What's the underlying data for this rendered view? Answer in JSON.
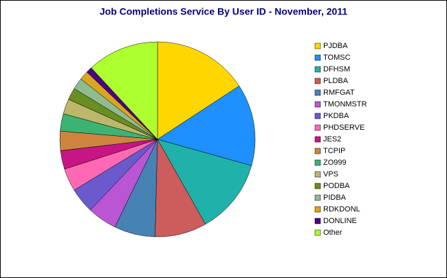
{
  "chart_data": {
    "type": "pie",
    "title": "Job Completions Service By User ID - November, 2011",
    "series": [
      {
        "name": "PJDBA",
        "color": "#FFD700",
        "values": [
          15.8
        ]
      },
      {
        "name": "TOMSC",
        "color": "#1E90FF",
        "values": [
          13.6
        ]
      },
      {
        "name": "DFHSM",
        "color": "#20B2AA",
        "values": [
          12.5
        ]
      },
      {
        "name": "PLDBA",
        "color": "#CD5C5C",
        "values": [
          8.6
        ]
      },
      {
        "name": "RMFGAT",
        "color": "#4682B4",
        "values": [
          6.8
        ]
      },
      {
        "name": "TMONMSTR",
        "color": "#BA55D3",
        "values": [
          4.9
        ]
      },
      {
        "name": "PKDBA",
        "color": "#6A5ACD",
        "values": [
          4.2
        ]
      },
      {
        "name": "PHDSERVE",
        "color": "#FF69B4",
        "values": [
          3.8
        ]
      },
      {
        "name": "JES2",
        "color": "#C71585",
        "values": [
          3.1
        ]
      },
      {
        "name": "TCPIP",
        "color": "#CD853F",
        "values": [
          3.2
        ]
      },
      {
        "name": "ZO999",
        "color": "#3CB371",
        "values": [
          2.9
        ]
      },
      {
        "name": "VPS",
        "color": "#BDB76B",
        "values": [
          2.5
        ]
      },
      {
        "name": "PODBA",
        "color": "#6B8E23",
        "values": [
          2.0
        ]
      },
      {
        "name": "PIDBA",
        "color": "#8FBC8F",
        "values": [
          1.9
        ]
      },
      {
        "name": "RDKDONL",
        "color": "#DAA520",
        "values": [
          1.5
        ]
      },
      {
        "name": "DONLINE",
        "color": "#4B0082",
        "values": [
          1.0
        ]
      },
      {
        "name": "Other",
        "color": "#ADFF2F",
        "values": [
          11.9
        ]
      }
    ]
  }
}
